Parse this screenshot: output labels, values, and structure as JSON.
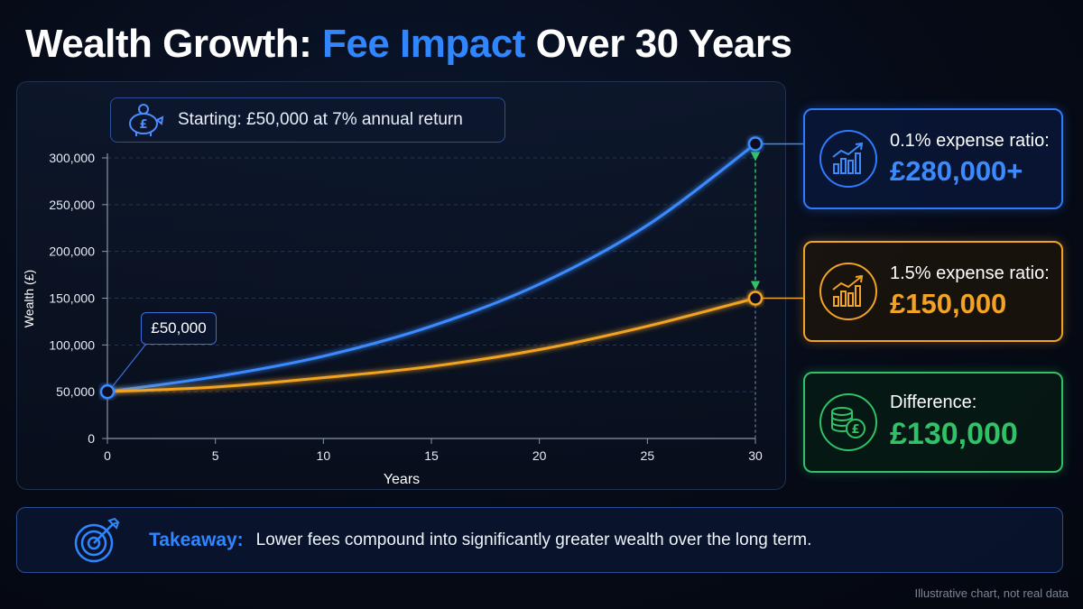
{
  "title": {
    "part1": "Wealth Growth: ",
    "accent": "Fee Impact",
    "part2": " Over 30 Years"
  },
  "start_box": {
    "icon": "piggy-bank-pound-icon",
    "text": "Starting: £50,000 at 7% annual return"
  },
  "start_label": "£50,000",
  "cards": {
    "low_fee": {
      "icon": "chart-growth-icon",
      "label": "0.1% expense ratio:",
      "value": "£280,000+"
    },
    "high_fee": {
      "icon": "chart-growth-icon",
      "label": "1.5% expense ratio:",
      "value": "£150,000"
    },
    "difference": {
      "icon": "coins-pound-icon",
      "label": "Difference:",
      "value": "£130,000"
    }
  },
  "takeaway": {
    "icon": "target-icon",
    "label": "Takeaway:",
    "text": "Lower fees compound into significantly greater wealth over the long term."
  },
  "footnote": "Illustrative chart, not real data",
  "colors": {
    "accent_blue": "#2f86ff",
    "series_low_fee": "#3b8bff",
    "series_high_fee": "#f2a324",
    "difference_green": "#2fc266"
  },
  "chart_data": {
    "type": "line",
    "xlabel": "Years",
    "ylabel": "Wealth (£)",
    "xlim": [
      0,
      30
    ],
    "ylim": [
      0,
      300000
    ],
    "x_ticks": [
      0,
      5,
      10,
      15,
      20,
      25,
      30
    ],
    "y_ticks": [
      0,
      50000,
      100000,
      150000,
      200000,
      250000,
      300000
    ],
    "y_tick_labels": [
      "0",
      "50,000",
      "100,000",
      "150,000",
      "200,000",
      "250,000",
      "300,000"
    ],
    "grid": "horizontal dashed",
    "x": [
      0,
      5,
      10,
      15,
      20,
      25,
      30
    ],
    "series": [
      {
        "key": "low_fee",
        "values": [
          50000,
          66000,
          88000,
          120000,
          165000,
          228000,
          315000
        ]
      },
      {
        "key": "high_fee",
        "values": [
          50000,
          55000,
          65000,
          77000,
          95000,
          120000,
          150000
        ]
      }
    ]
  }
}
